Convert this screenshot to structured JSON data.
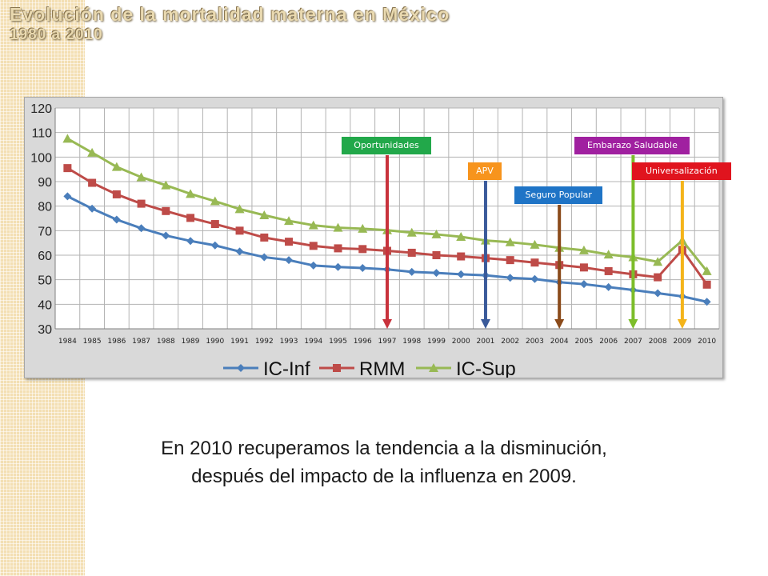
{
  "slide": {
    "title_line1": "Evolución de la mortalidad materna en México",
    "title_line2": "1980 a 2010",
    "caption_line1": "En 2010 recuperamos la tendencia a la disminución,",
    "caption_line2": "después del impacto de la influenza en 2009."
  },
  "programs": [
    {
      "label": "Oportunidades",
      "year": "1997",
      "color": "#22a84a"
    },
    {
      "label": "APV",
      "year": "2001",
      "color": "#f7941d"
    },
    {
      "label": "Seguro Popular",
      "year": "2004",
      "color": "#1f74c6"
    },
    {
      "label": "Embarazo Saludable",
      "year": "2007",
      "color": "#a020a0"
    },
    {
      "label": "Universalización",
      "year": "2009",
      "color": "#e0141e"
    }
  ],
  "program_arrow_colors": [
    "#c8323c",
    "#3a5a9a",
    "#8a4a1a",
    "#7cbd2a",
    "#f4b41a"
  ],
  "chart_data": {
    "type": "line",
    "categories": [
      "1984",
      "1985",
      "1986",
      "1987",
      "1988",
      "1989",
      "1990",
      "1991",
      "1992",
      "1993",
      "1994",
      "1995",
      "1996",
      "1997",
      "1998",
      "1999",
      "2000",
      "2001",
      "2002",
      "2003",
      "2004",
      "2005",
      "2006",
      "2007",
      "2008",
      "2009",
      "2010"
    ],
    "ylim": [
      30,
      120
    ],
    "yticks": [
      "30",
      "40",
      "50",
      "60",
      "70",
      "80",
      "90",
      "100",
      "110",
      "120"
    ],
    "grid": true,
    "legend_position": "bottom",
    "series": [
      {
        "name": "IC-Inf",
        "color": "#4a7ebb",
        "marker": "diamond",
        "values": [
          84,
          79,
          74.5,
          71,
          68,
          65.8,
          64,
          61.5,
          59.2,
          58,
          55.8,
          55.2,
          54.8,
          54.2,
          53.2,
          52.8,
          52.2,
          51.8,
          50.8,
          50.3,
          49,
          48.2,
          47,
          45.8,
          44.5,
          43.2,
          41
        ]
      },
      {
        "name": "RMM",
        "color": "#be4b48",
        "marker": "square",
        "values": [
          95.5,
          89.5,
          84.8,
          81,
          78,
          75.2,
          72.7,
          70,
          67.2,
          65.5,
          63.8,
          62.8,
          62.5,
          61.8,
          61,
          60,
          59.5,
          58.8,
          58,
          57,
          56,
          55,
          53.5,
          52.2,
          51,
          62.2,
          48
        ]
      },
      {
        "name": "IC-Sup",
        "color": "#98b954",
        "marker": "triangle",
        "values": [
          107.5,
          101.8,
          96,
          91.8,
          88.5,
          85,
          82,
          78.8,
          76.3,
          74,
          72.2,
          71.2,
          70.8,
          70.2,
          69.2,
          68.5,
          67.5,
          66,
          65.3,
          64.3,
          63,
          62,
          60.3,
          59.2,
          57.3,
          66,
          53.5
        ]
      }
    ]
  }
}
